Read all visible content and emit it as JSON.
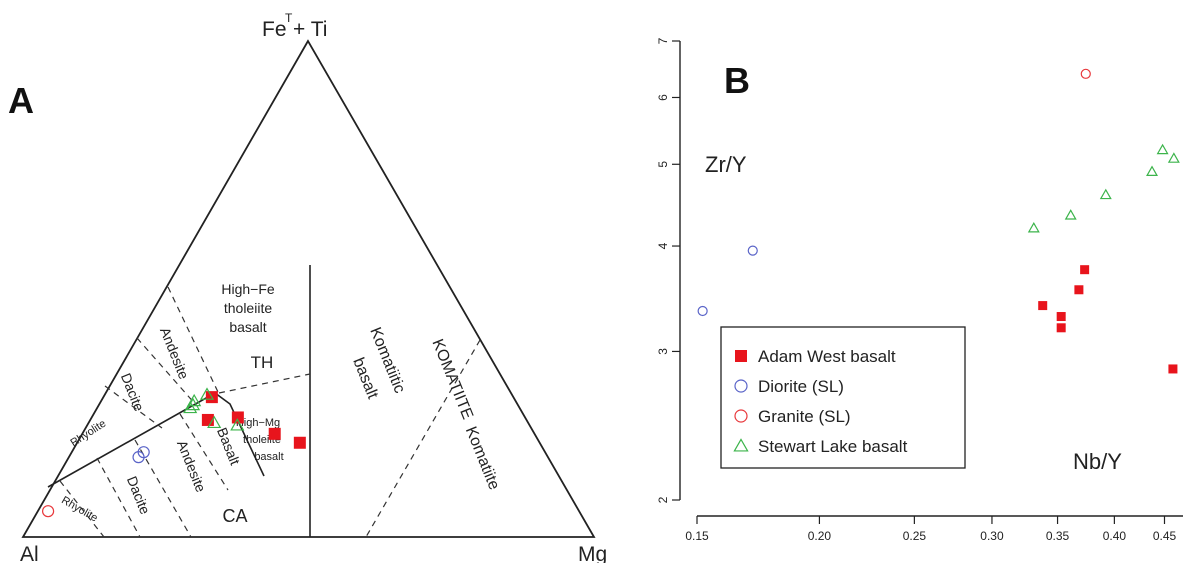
{
  "chart_data": [
    {
      "type": "ternary",
      "panel_label": "A",
      "apex_labels": {
        "top_main": "Fe",
        "top_sup": "T",
        "top_rest": "+ Ti",
        "left": "Al",
        "right": "Mg"
      },
      "field_labels": {
        "high_fe_1": "High−Fe",
        "high_fe_2": "tholeiite",
        "high_fe_3": "basalt",
        "th": "TH",
        "ca": "CA",
        "high_mg_1": "High−Mg",
        "high_mg_2": "tholeiite",
        "high_mg_3": "basalt",
        "andesite_th": "Andesite",
        "dacite_th": "Dacite",
        "rhyolite_th": "Rhyolite",
        "basalt_ca": "Basalt",
        "andesite_ca": "Andesite",
        "dacite_ca": "Dacite",
        "rhyolite_ca": "Rhyolite",
        "komatiitic_1": "Komatiitic",
        "komatiitic_2": "basalt",
        "komatiite_upper": "KOMATIITE",
        "komatiite_lower": "Komatiite"
      },
      "series": [
        {
          "name": "Adam West basalt",
          "marker": "square-filled",
          "color": "#e8141c",
          "points": [
            {
              "al": 0.528,
              "fe": 0.282,
              "mg": 0.19
            },
            {
              "al": 0.558,
              "fe": 0.236,
              "mg": 0.206
            },
            {
              "al": 0.503,
              "fe": 0.241,
              "mg": 0.256
            },
            {
              "al": 0.455,
              "fe": 0.208,
              "mg": 0.337
            },
            {
              "al": 0.42,
              "fe": 0.19,
              "mg": 0.39
            }
          ]
        },
        {
          "name": "Diorite (SL)",
          "marker": "circle-open",
          "color": "#5a64c8",
          "points": [
            {
              "al": 0.717,
              "fe": 0.161,
              "mg": 0.122
            },
            {
              "al": 0.703,
              "fe": 0.171,
              "mg": 0.126
            }
          ]
        },
        {
          "name": "Granite (SL)",
          "marker": "circle-open",
          "color": "#e8383c",
          "points": [
            {
              "al": 0.93,
              "fe": 0.052,
              "mg": 0.018
            }
          ]
        },
        {
          "name": "Stewart Lake basalt",
          "marker": "triangle-open",
          "color": "#3cb44b",
          "points": [
            {
              "al": 0.577,
              "fe": 0.26,
              "mg": 0.163
            },
            {
              "al": 0.569,
              "fe": 0.266,
              "mg": 0.165
            },
            {
              "al": 0.563,
              "fe": 0.274,
              "mg": 0.163
            },
            {
              "al": 0.534,
              "fe": 0.287,
              "mg": 0.179
            },
            {
              "al": 0.55,
              "fe": 0.23,
              "mg": 0.22
            },
            {
              "al": 0.512,
              "fe": 0.225,
              "mg": 0.263
            }
          ]
        }
      ]
    },
    {
      "type": "scatter",
      "panel_label": "B",
      "xlabel": "Nb/Y",
      "ylabel": "Zr/Y",
      "x_scale": "log",
      "y_scale": "log",
      "xlim": [
        0.15,
        0.47
      ],
      "ylim": [
        2,
        7
      ],
      "x_ticks": [
        0.15,
        0.2,
        0.25,
        0.3,
        0.35,
        0.4,
        0.45
      ],
      "x_tick_labels": [
        "0.15",
        "0.20",
        "0.25",
        "0.30",
        "0.35",
        "0.40",
        "0.45"
      ],
      "y_ticks": [
        2,
        3,
        4,
        5,
        6,
        7
      ],
      "y_tick_labels": [
        "2",
        "3",
        "4",
        "5",
        "6",
        "7"
      ],
      "legend_position": "bottom-left",
      "series": [
        {
          "name": "Adam West basalt",
          "marker": "square-filled",
          "color": "#e8141c",
          "points": [
            [
              0.338,
              3.4
            ],
            [
              0.353,
              3.3
            ],
            [
              0.353,
              3.2
            ],
            [
              0.368,
              3.55
            ],
            [
              0.373,
              3.75
            ],
            [
              0.459,
              2.86
            ]
          ]
        },
        {
          "name": "Diorite (SL)",
          "marker": "circle-open",
          "color": "#5a64c8",
          "points": [
            [
              0.152,
              3.35
            ],
            [
              0.171,
              3.95
            ]
          ]
        },
        {
          "name": "Granite (SL)",
          "marker": "circle-open",
          "color": "#e8383c",
          "points": [
            [
              0.374,
              6.4
            ]
          ]
        },
        {
          "name": "Stewart Lake basalt",
          "marker": "triangle-open",
          "color": "#3cb44b",
          "points": [
            [
              0.331,
              4.2
            ],
            [
              0.361,
              4.35
            ],
            [
              0.392,
              4.6
            ],
            [
              0.437,
              4.9
            ],
            [
              0.448,
              5.2
            ],
            [
              0.46,
              5.08
            ]
          ]
        }
      ]
    }
  ]
}
